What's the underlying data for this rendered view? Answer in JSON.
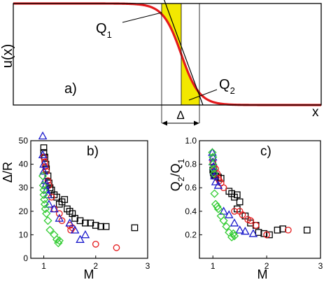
{
  "panel_a": {
    "panel_label": "a)",
    "ylabel": "u(x)",
    "xlabel": "x",
    "label_q1": "Q",
    "label_q1_sub": "1",
    "label_q2": "Q",
    "label_q2_sub": "2",
    "label_delta": "Δ"
  },
  "colors": {
    "curve": "#e41a1c",
    "fill": "#f2e800",
    "black": "#000000",
    "blue": "#1a1acc",
    "green": "#33cc33"
  },
  "chart_data": [
    {
      "type": "scatter",
      "panel_label": "b)",
      "xlabel": "M",
      "ylabel": "Δ/R",
      "xlim": [
        0.75,
        3
      ],
      "ylim": [
        0,
        50
      ],
      "xticks": [
        "1",
        "2",
        "3"
      ],
      "yticks": [
        "0",
        "10",
        "20",
        "30",
        "40",
        "50"
      ],
      "series": [
        {
          "marker": "square",
          "color": "#000000",
          "points": [
            [
              1.0,
              47
            ],
            [
              1.0,
              45
            ],
            [
              1.02,
              43
            ],
            [
              1.04,
              40
            ],
            [
              1.05,
              38
            ],
            [
              1.08,
              35
            ],
            [
              1.1,
              32
            ],
            [
              1.12,
              30
            ],
            [
              1.15,
              29
            ],
            [
              1.2,
              27
            ],
            [
              1.25,
              26
            ],
            [
              1.3,
              23
            ],
            [
              1.35,
              24
            ],
            [
              1.4,
              25
            ],
            [
              1.45,
              21
            ],
            [
              1.5,
              20
            ],
            [
              1.55,
              19
            ],
            [
              1.6,
              17
            ],
            [
              1.7,
              16
            ],
            [
              1.8,
              15
            ],
            [
              1.9,
              15
            ],
            [
              2.0,
              14
            ],
            [
              2.1,
              13.5
            ],
            [
              2.2,
              13.5
            ],
            [
              2.75,
              13
            ]
          ]
        },
        {
          "marker": "circle",
          "color": "#e41a1c",
          "points": [
            [
              1.0,
              43
            ],
            [
              1.02,
              41
            ],
            [
              1.03,
              39
            ],
            [
              1.05,
              37
            ],
            [
              1.08,
              33
            ],
            [
              1.1,
              31
            ],
            [
              1.15,
              26
            ],
            [
              1.2,
              21
            ],
            [
              1.3,
              19
            ],
            [
              1.35,
              16
            ],
            [
              1.5,
              14
            ],
            [
              1.52,
              12
            ],
            [
              1.55,
              13
            ],
            [
              2.0,
              6
            ],
            [
              2.4,
              4.5
            ]
          ]
        },
        {
          "marker": "triangle",
          "color": "#1a1acc",
          "points": [
            [
              0.98,
              52
            ],
            [
              0.98,
              44
            ],
            [
              1.0,
              40
            ],
            [
              1.0,
              37
            ],
            [
              1.02,
              33
            ],
            [
              1.03,
              31
            ],
            [
              1.05,
              29
            ],
            [
              1.08,
              27
            ],
            [
              1.1,
              23
            ],
            [
              1.2,
              21
            ],
            [
              1.3,
              17
            ],
            [
              1.5,
              15
            ],
            [
              1.6,
              12
            ],
            [
              1.7,
              8
            ],
            [
              1.8,
              10
            ]
          ]
        },
        {
          "marker": "diamond",
          "color": "#33cc33",
          "points": [
            [
              0.98,
              35
            ],
            [
              0.99,
              31
            ],
            [
              1.0,
              29
            ],
            [
              1.0,
              27
            ],
            [
              1.01,
              25
            ],
            [
              1.02,
              23
            ],
            [
              1.03,
              21
            ],
            [
              1.05,
              19
            ],
            [
              1.08,
              16
            ],
            [
              1.12,
              12
            ],
            [
              1.2,
              10
            ],
            [
              1.25,
              8
            ],
            [
              1.28,
              6.5
            ],
            [
              1.3,
              7.5
            ]
          ]
        }
      ]
    },
    {
      "type": "scatter",
      "panel_label": "c)",
      "xlabel": "M",
      "ylabel": "Q",
      "ylabel_sub2": "2",
      "ylabel_mid": "/Q",
      "ylabel_sub1": "1",
      "xlim": [
        0.75,
        3
      ],
      "ylim": [
        0,
        1.0
      ],
      "xticks": [
        "1",
        "2",
        "3"
      ],
      "yticks": [
        "0.2",
        "0.4",
        "0.6",
        "0.8",
        "1.0"
      ],
      "series": [
        {
          "marker": "square",
          "color": "#000000",
          "points": [
            [
              1.0,
              0.75
            ],
            [
              1.01,
              0.73
            ],
            [
              1.02,
              0.71
            ],
            [
              1.05,
              0.7
            ],
            [
              1.1,
              0.69
            ],
            [
              1.15,
              0.68
            ],
            [
              1.3,
              0.57
            ],
            [
              1.35,
              0.55
            ],
            [
              1.4,
              0.52
            ],
            [
              1.45,
              0.54
            ],
            [
              1.5,
              0.48
            ],
            [
              1.45,
              0.42
            ],
            [
              1.6,
              0.36
            ],
            [
              1.7,
              0.3
            ],
            [
              1.8,
              0.28
            ],
            [
              1.85,
              0.22
            ],
            [
              1.95,
              0.21
            ],
            [
              2.05,
              0.2
            ],
            [
              2.2,
              0.24
            ],
            [
              2.3,
              0.25
            ],
            [
              2.75,
              0.24
            ]
          ]
        },
        {
          "marker": "circle",
          "color": "#e41a1c",
          "points": [
            [
              1.0,
              0.82
            ],
            [
              1.02,
              0.78
            ],
            [
              1.05,
              0.76
            ],
            [
              1.08,
              0.72
            ],
            [
              1.1,
              0.68
            ],
            [
              1.12,
              0.66
            ],
            [
              1.15,
              0.64
            ],
            [
              1.2,
              0.6
            ],
            [
              1.4,
              0.4
            ],
            [
              1.5,
              0.4
            ],
            [
              1.55,
              0.37
            ],
            [
              1.65,
              0.33
            ],
            [
              1.7,
              0.32
            ],
            [
              1.8,
              0.28
            ],
            [
              2.0,
              0.2
            ],
            [
              2.4,
              0.24
            ]
          ]
        },
        {
          "marker": "triangle",
          "color": "#1a1acc",
          "points": [
            [
              0.99,
              0.9
            ],
            [
              1.0,
              0.86
            ],
            [
              1.0,
              0.82
            ],
            [
              1.01,
              0.78
            ],
            [
              1.02,
              0.74
            ],
            [
              1.03,
              0.7
            ],
            [
              1.05,
              0.65
            ],
            [
              1.1,
              0.62
            ],
            [
              1.2,
              0.4
            ],
            [
              1.3,
              0.37
            ],
            [
              1.4,
              0.3
            ],
            [
              1.5,
              0.24
            ],
            [
              1.6,
              0.23
            ],
            [
              1.75,
              0.21
            ]
          ]
        },
        {
          "marker": "diamond",
          "color": "#33cc33",
          "points": [
            [
              0.99,
              0.9
            ],
            [
              1.0,
              0.86
            ],
            [
              1.0,
              0.8
            ],
            [
              1.01,
              0.76
            ],
            [
              1.02,
              0.72
            ],
            [
              1.03,
              0.55
            ],
            [
              1.05,
              0.46
            ],
            [
              1.08,
              0.44
            ],
            [
              1.1,
              0.42
            ],
            [
              1.15,
              0.36
            ],
            [
              1.2,
              0.32
            ],
            [
              1.25,
              0.27
            ],
            [
              1.3,
              0.22
            ],
            [
              1.35,
              0.18
            ],
            [
              1.4,
              0.19
            ],
            [
              1.38,
              0.21
            ]
          ]
        }
      ]
    }
  ]
}
